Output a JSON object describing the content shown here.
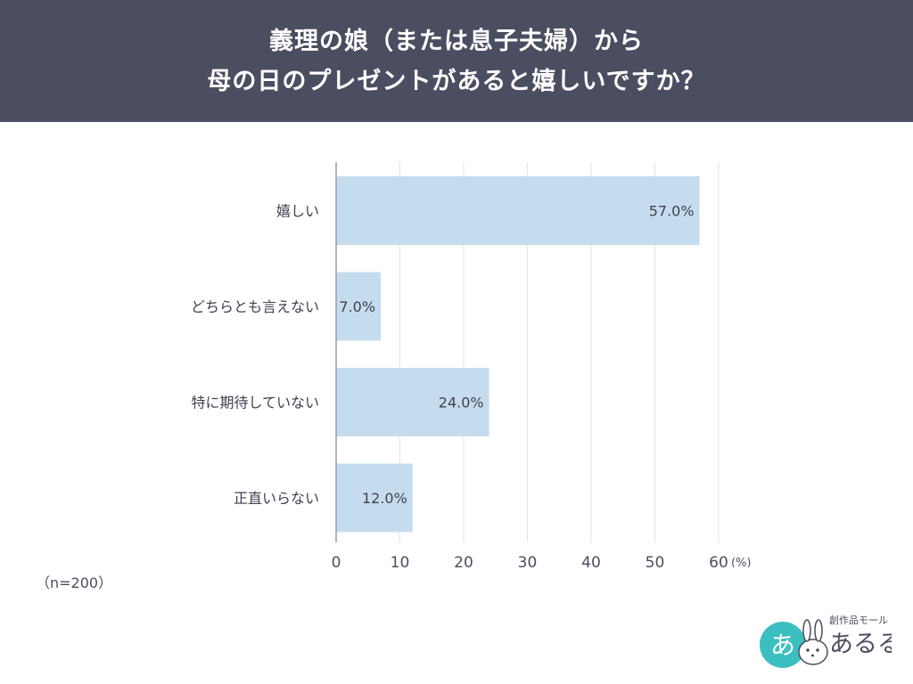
{
  "header": {
    "title_line1": "義理の娘（または息子夫婦）から",
    "title_line2": "母の日のプレゼントがあると嬉しいですか？"
  },
  "chart_data": {
    "type": "bar",
    "orientation": "horizontal",
    "categories": [
      "嬉しい",
      "どちらとも言えない",
      "特に期待していない",
      "正直いらない"
    ],
    "values": [
      57.0,
      7.0,
      24.0,
      12.0
    ],
    "value_labels": [
      "57.0%",
      "7.0%",
      "24.0%",
      "12.0%"
    ],
    "x_ticks": [
      0,
      10,
      20,
      30,
      40,
      50,
      60
    ],
    "x_unit": "(%)",
    "xlim": [
      0,
      60
    ],
    "bar_color": "#c5dcef",
    "grid": true
  },
  "footer": {
    "sample_note": "（n=200）"
  },
  "logo": {
    "tagline": "創作品モール",
    "name": "あるる",
    "badge_text": "あ",
    "teal": "#3cbfc0"
  }
}
